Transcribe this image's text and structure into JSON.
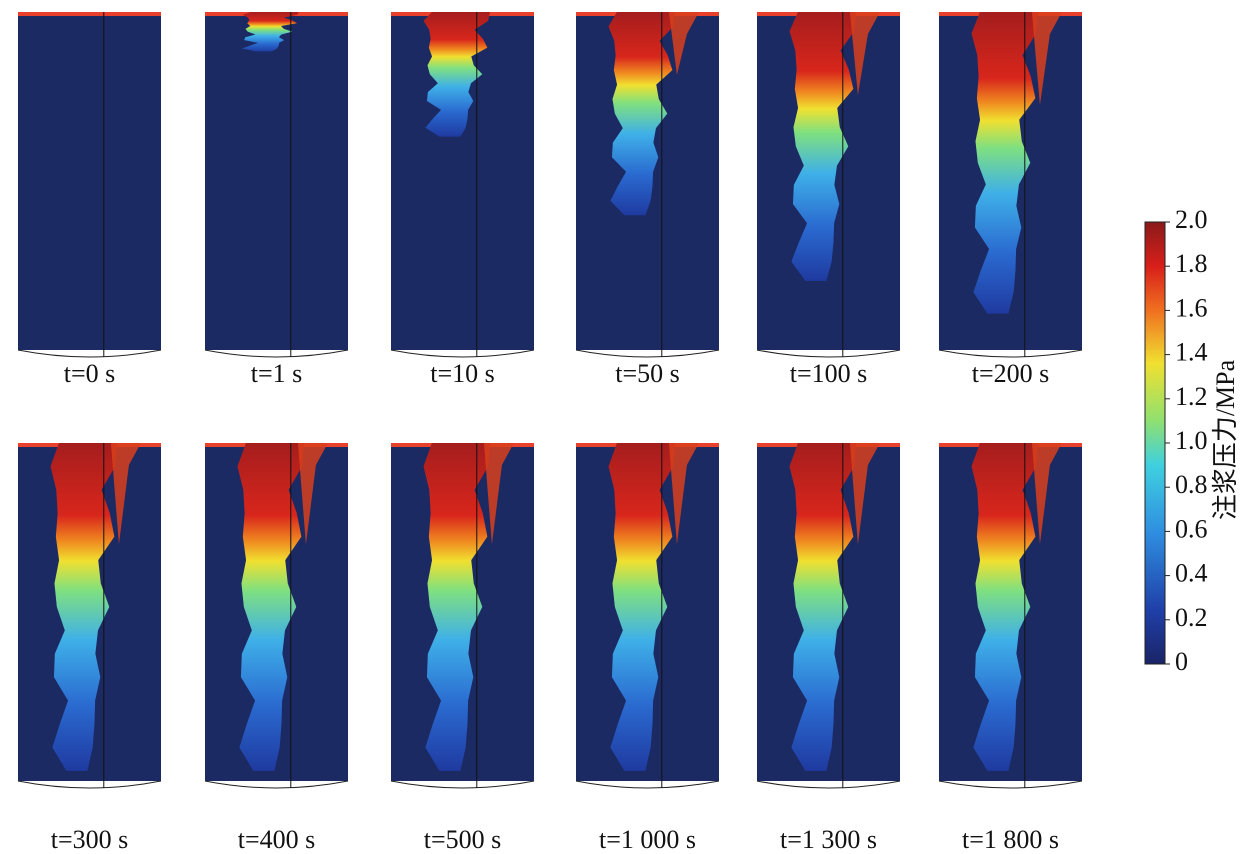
{
  "panels": [
    "t=0 s",
    "t=1 s",
    "t=10 s",
    "t=50 s",
    "t=100 s",
    "t=200 s",
    "t=300 s",
    "t=400 s",
    "t=500 s",
    "t=1 000 s",
    "t=1 300 s",
    "t=1 800 s"
  ],
  "colorbar": {
    "title": "注浆压力/MPa",
    "ticks": [
      {
        "value": 2,
        "label": "2.0"
      },
      1.8,
      1.6,
      1.4,
      1.2,
      {
        "value": 1,
        "label": "1.0"
      },
      0.8,
      0.6,
      0.4,
      0.2,
      0
    ],
    "range": [
      0,
      2
    ]
  }
}
